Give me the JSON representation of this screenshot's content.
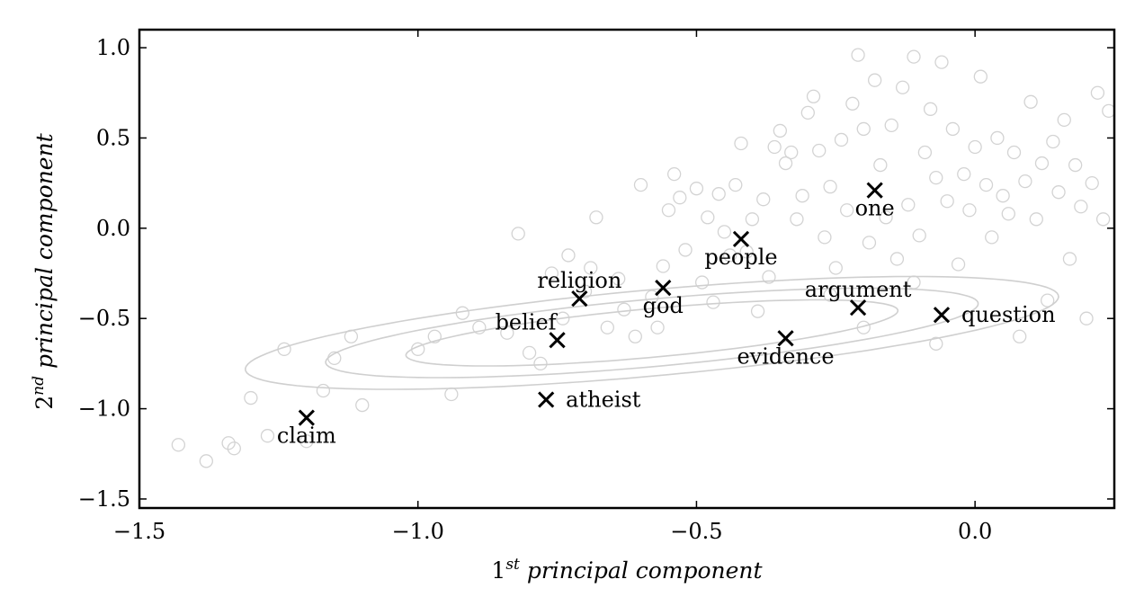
{
  "chart_data": {
    "type": "scatter",
    "xlabel": "1st principal component",
    "xlabel_base": "1",
    "xlabel_sup": "st",
    "xlabel_rest": " principal component",
    "ylabel": "2nd principal component",
    "ylabel_base": "2",
    "ylabel_sup": "nd",
    "ylabel_rest": " principal component",
    "xlim": [
      -1.5,
      0.25
    ],
    "ylim": [
      -1.55,
      1.1
    ],
    "xticks": [
      -1.5,
      -1.0,
      -0.5,
      0.0
    ],
    "xtick_labels": [
      "−1.5",
      "−1.0",
      "−0.5",
      "0.0"
    ],
    "yticks": [
      1.0,
      0.5,
      0.0,
      -0.5,
      -1.0,
      -1.5
    ],
    "ytick_labels": [
      "1.0",
      "0.5",
      "0.0",
      "−0.5",
      "−1.0",
      "−1.5"
    ],
    "grid": false,
    "words": [
      {
        "label": "one",
        "x": -0.18,
        "y": 0.21,
        "label_pos": "below"
      },
      {
        "label": "people",
        "x": -0.42,
        "y": -0.06,
        "label_pos": "below"
      },
      {
        "label": "religion",
        "x": -0.71,
        "y": -0.39,
        "label_pos": "above"
      },
      {
        "label": "god",
        "x": -0.56,
        "y": -0.33,
        "label_pos": "below"
      },
      {
        "label": "argument",
        "x": -0.21,
        "y": -0.44,
        "label_pos": "above"
      },
      {
        "label": "question",
        "x": -0.06,
        "y": -0.48,
        "label_pos": "right"
      },
      {
        "label": "belief",
        "x": -0.75,
        "y": -0.62,
        "label_pos": "above-left"
      },
      {
        "label": "evidence",
        "x": -0.34,
        "y": -0.61,
        "label_pos": "below"
      },
      {
        "label": "atheist",
        "x": -0.77,
        "y": -0.95,
        "label_pos": "right"
      },
      {
        "label": "claim",
        "x": -1.2,
        "y": -1.05,
        "label_pos": "below"
      }
    ],
    "ellipses": {
      "center": [
        -0.58,
        -0.58
      ],
      "angle_deg": 17,
      "semi_axes": [
        [
          0.46,
          0.13
        ],
        [
          0.61,
          0.18
        ],
        [
          0.76,
          0.23
        ]
      ]
    },
    "background_points": [
      [
        -1.43,
        -1.2
      ],
      [
        -1.38,
        -1.29
      ],
      [
        -1.34,
        -1.19
      ],
      [
        -1.33,
        -1.22
      ],
      [
        -1.3,
        -0.94
      ],
      [
        -1.27,
        -1.15
      ],
      [
        -1.24,
        -0.67
      ],
      [
        -1.2,
        -1.18
      ],
      [
        -1.17,
        -0.9
      ],
      [
        -1.15,
        -0.72
      ],
      [
        -1.12,
        -0.6
      ],
      [
        -1.1,
        -0.98
      ],
      [
        -1.0,
        -0.67
      ],
      [
        -0.97,
        -0.6
      ],
      [
        -0.94,
        -0.92
      ],
      [
        -0.92,
        -0.47
      ],
      [
        -0.89,
        -0.55
      ],
      [
        -0.84,
        -0.58
      ],
      [
        -0.82,
        -0.03
      ],
      [
        -0.8,
        -0.69
      ],
      [
        -0.78,
        -0.75
      ],
      [
        -0.76,
        -0.25
      ],
      [
        -0.74,
        -0.5
      ],
      [
        -0.73,
        -0.15
      ],
      [
        -0.7,
        -0.35
      ],
      [
        -0.69,
        -0.22
      ],
      [
        -0.68,
        0.06
      ],
      [
        -0.66,
        -0.55
      ],
      [
        -0.64,
        -0.28
      ],
      [
        -0.63,
        -0.45
      ],
      [
        -0.61,
        -0.6
      ],
      [
        -0.6,
        0.24
      ],
      [
        -0.58,
        -0.38
      ],
      [
        -0.57,
        -0.55
      ],
      [
        -0.56,
        -0.21
      ],
      [
        -0.55,
        0.1
      ],
      [
        -0.54,
        0.3
      ],
      [
        -0.53,
        0.17
      ],
      [
        -0.52,
        -0.12
      ],
      [
        -0.5,
        0.22
      ],
      [
        -0.49,
        -0.3
      ],
      [
        -0.48,
        0.06
      ],
      [
        -0.47,
        -0.41
      ],
      [
        -0.46,
        0.19
      ],
      [
        -0.45,
        -0.02
      ],
      [
        -0.44,
        -0.15
      ],
      [
        -0.43,
        0.24
      ],
      [
        -0.42,
        0.47
      ],
      [
        -0.41,
        -0.13
      ],
      [
        -0.4,
        0.05
      ],
      [
        -0.39,
        -0.46
      ],
      [
        -0.38,
        0.16
      ],
      [
        -0.37,
        -0.27
      ],
      [
        -0.36,
        0.45
      ],
      [
        -0.35,
        0.54
      ],
      [
        -0.34,
        0.36
      ],
      [
        -0.33,
        0.42
      ],
      [
        -0.32,
        0.05
      ],
      [
        -0.31,
        0.18
      ],
      [
        -0.3,
        0.64
      ],
      [
        -0.29,
        0.73
      ],
      [
        -0.28,
        0.43
      ],
      [
        -0.27,
        -0.05
      ],
      [
        -0.26,
        0.23
      ],
      [
        -0.25,
        -0.22
      ],
      [
        -0.24,
        0.49
      ],
      [
        -0.23,
        0.1
      ],
      [
        -0.22,
        0.69
      ],
      [
        -0.21,
        0.96
      ],
      [
        -0.2,
        0.55
      ],
      [
        -0.19,
        -0.08
      ],
      [
        -0.18,
        0.82
      ],
      [
        -0.17,
        0.35
      ],
      [
        -0.16,
        0.06
      ],
      [
        -0.15,
        0.57
      ],
      [
        -0.14,
        -0.17
      ],
      [
        -0.13,
        0.78
      ],
      [
        -0.12,
        0.13
      ],
      [
        -0.11,
        0.95
      ],
      [
        -0.1,
        -0.04
      ],
      [
        -0.09,
        0.42
      ],
      [
        -0.08,
        0.66
      ],
      [
        -0.07,
        0.28
      ],
      [
        -0.06,
        0.92
      ],
      [
        -0.05,
        0.15
      ],
      [
        -0.04,
        0.55
      ],
      [
        -0.03,
        -0.2
      ],
      [
        -0.02,
        0.3
      ],
      [
        -0.01,
        0.1
      ],
      [
        0.0,
        0.45
      ],
      [
        0.01,
        0.84
      ],
      [
        0.02,
        0.24
      ],
      [
        0.03,
        -0.05
      ],
      [
        0.04,
        0.5
      ],
      [
        0.05,
        0.18
      ],
      [
        0.06,
        0.08
      ],
      [
        0.07,
        0.42
      ],
      [
        0.08,
        -0.6
      ],
      [
        0.09,
        0.26
      ],
      [
        0.1,
        0.7
      ],
      [
        0.11,
        0.05
      ],
      [
        0.12,
        0.36
      ],
      [
        0.13,
        -0.4
      ],
      [
        0.14,
        0.48
      ],
      [
        0.15,
        0.2
      ],
      [
        0.16,
        0.6
      ],
      [
        0.17,
        -0.17
      ],
      [
        0.18,
        0.35
      ],
      [
        0.19,
        0.12
      ],
      [
        0.2,
        -0.5
      ],
      [
        0.21,
        0.25
      ],
      [
        0.22,
        0.75
      ],
      [
        0.23,
        0.05
      ],
      [
        0.24,
        0.65
      ],
      [
        -0.2,
        -0.55
      ],
      [
        -0.26,
        -0.37
      ],
      [
        -0.11,
        -0.3
      ],
      [
        -0.07,
        -0.64
      ]
    ]
  }
}
